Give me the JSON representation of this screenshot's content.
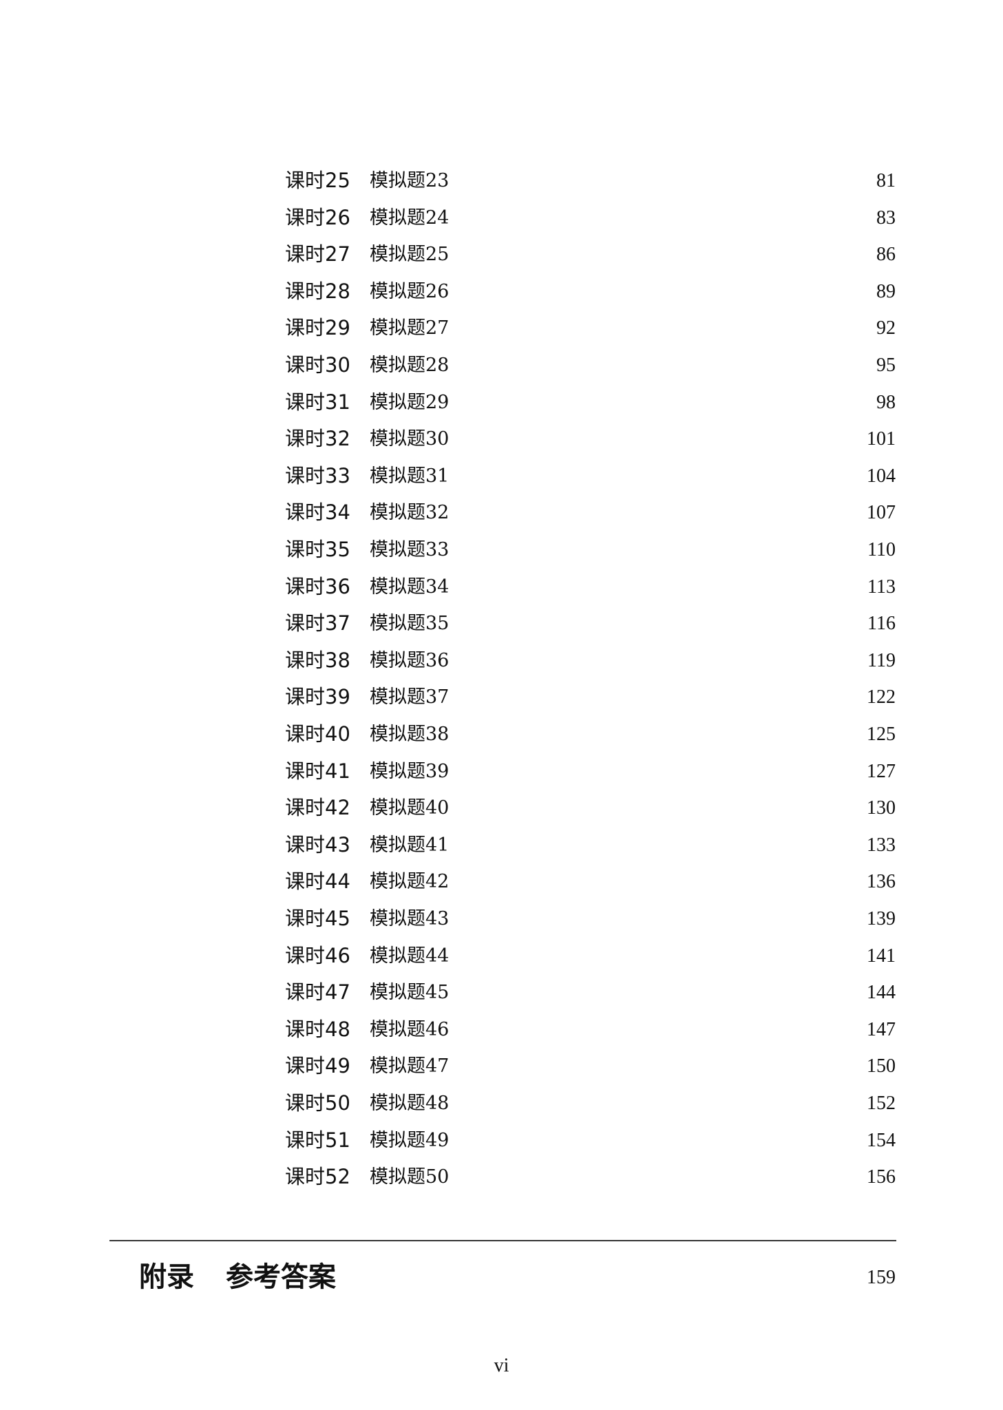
{
  "toc": [
    {
      "lesson": "课时25",
      "title": "模拟题23",
      "page": "81"
    },
    {
      "lesson": "课时26",
      "title": "模拟题24",
      "page": "83"
    },
    {
      "lesson": "课时27",
      "title": "模拟题25",
      "page": "86"
    },
    {
      "lesson": "课时28",
      "title": "模拟题26",
      "page": "89"
    },
    {
      "lesson": "课时29",
      "title": "模拟题27",
      "page": "92"
    },
    {
      "lesson": "课时30",
      "title": "模拟题28",
      "page": "95"
    },
    {
      "lesson": "课时31",
      "title": "模拟题29",
      "page": "98"
    },
    {
      "lesson": "课时32",
      "title": "模拟题30",
      "page": "101"
    },
    {
      "lesson": "课时33",
      "title": "模拟题31",
      "page": "104"
    },
    {
      "lesson": "课时34",
      "title": "模拟题32",
      "page": "107"
    },
    {
      "lesson": "课时35",
      "title": "模拟题33",
      "page": "110"
    },
    {
      "lesson": "课时36",
      "title": "模拟题34",
      "page": "113"
    },
    {
      "lesson": "课时37",
      "title": "模拟题35",
      "page": "116"
    },
    {
      "lesson": "课时38",
      "title": "模拟题36",
      "page": "119"
    },
    {
      "lesson": "课时39",
      "title": "模拟题37",
      "page": "122"
    },
    {
      "lesson": "课时40",
      "title": "模拟题38",
      "page": "125"
    },
    {
      "lesson": "课时41",
      "title": "模拟题39",
      "page": "127"
    },
    {
      "lesson": "课时42",
      "title": "模拟题40",
      "page": "130"
    },
    {
      "lesson": "课时43",
      "title": "模拟题41",
      "page": "133"
    },
    {
      "lesson": "课时44",
      "title": "模拟题42",
      "page": "136"
    },
    {
      "lesson": "课时45",
      "title": "模拟题43",
      "page": "139"
    },
    {
      "lesson": "课时46",
      "title": "模拟题44",
      "page": "141"
    },
    {
      "lesson": "课时47",
      "title": "模拟题45",
      "page": "144"
    },
    {
      "lesson": "课时48",
      "title": "模拟题46",
      "page": "147"
    },
    {
      "lesson": "课时49",
      "title": "模拟题47",
      "page": "150"
    },
    {
      "lesson": "课时50",
      "title": "模拟题48",
      "page": "152"
    },
    {
      "lesson": "课时51",
      "title": "模拟题49",
      "page": "154"
    },
    {
      "lesson": "课时52",
      "title": "模拟题50",
      "page": "156"
    }
  ],
  "appendix": {
    "label": "附录",
    "title": "参考答案",
    "page": "159"
  },
  "folio": "vi"
}
